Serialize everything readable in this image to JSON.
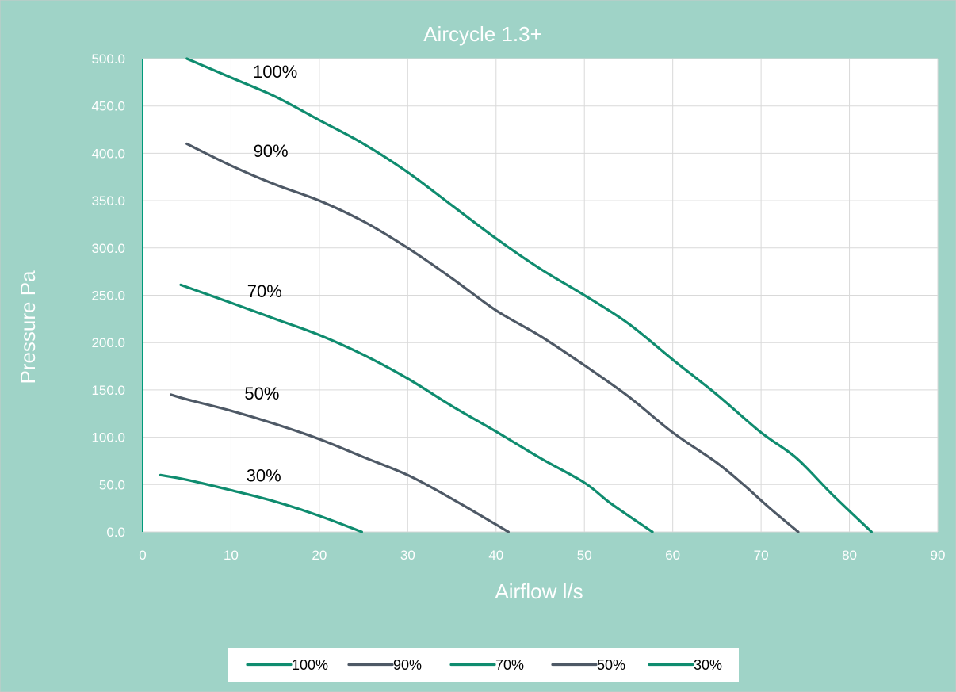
{
  "chart_data": {
    "type": "line",
    "title": "Aircycle 1.3+",
    "xlabel": "Airflow l/s",
    "ylabel": "Pressure Pa",
    "xlim": [
      0,
      90
    ],
    "ylim": [
      0,
      500
    ],
    "x_ticks": [
      "0",
      "10",
      "20",
      "30",
      "40",
      "50",
      "60",
      "70",
      "80",
      "90"
    ],
    "y_ticks": [
      "0.0",
      "50.0",
      "100.0",
      "150.0",
      "200.0",
      "250.0",
      "300.0",
      "350.0",
      "400.0",
      "450.0",
      "500.0"
    ],
    "grid": true,
    "legend_position": "bottom",
    "colors": {
      "background": "#9fd3c7",
      "plot_area": "#ffffff",
      "gridline": "#d9d9d9",
      "axis_line": "#009a7a",
      "axis_text": "#ffffff",
      "teal_series": "#0f8c6f",
      "slate_series": "#4e5966",
      "annotation_text": "#000000"
    },
    "series": [
      {
        "name": "100%",
        "color": "#0f8c6f",
        "points": [
          [
            5,
            500
          ],
          [
            10,
            480
          ],
          [
            15,
            460
          ],
          [
            20,
            435
          ],
          [
            25,
            410
          ],
          [
            30,
            380
          ],
          [
            35,
            345
          ],
          [
            40,
            310
          ],
          [
            45,
            278
          ],
          [
            50,
            250
          ],
          [
            55,
            220
          ],
          [
            60,
            182
          ],
          [
            65,
            145
          ],
          [
            70,
            105
          ],
          [
            74,
            78
          ],
          [
            78,
            40
          ],
          [
            82.5,
            0
          ]
        ]
      },
      {
        "name": "90%",
        "color": "#4e5966",
        "points": [
          [
            5,
            410
          ],
          [
            10,
            387
          ],
          [
            15,
            367
          ],
          [
            20,
            350
          ],
          [
            25,
            328
          ],
          [
            30,
            300
          ],
          [
            35,
            268
          ],
          [
            40,
            234
          ],
          [
            45,
            207
          ],
          [
            50,
            176
          ],
          [
            55,
            143
          ],
          [
            60,
            105
          ],
          [
            65,
            73
          ],
          [
            68,
            50
          ],
          [
            71,
            25
          ],
          [
            74.2,
            0
          ]
        ]
      },
      {
        "name": "70%",
        "color": "#0f8c6f",
        "points": [
          [
            4.3,
            261
          ],
          [
            10,
            242
          ],
          [
            15,
            225
          ],
          [
            20,
            208
          ],
          [
            25,
            187
          ],
          [
            30,
            162
          ],
          [
            35,
            133
          ],
          [
            40,
            106
          ],
          [
            45,
            78
          ],
          [
            50,
            52
          ],
          [
            53,
            30
          ],
          [
            57.7,
            0
          ]
        ]
      },
      {
        "name": "50%",
        "color": "#4e5966",
        "points": [
          [
            3.2,
            145
          ],
          [
            5,
            140
          ],
          [
            10,
            128
          ],
          [
            15,
            114
          ],
          [
            20,
            98
          ],
          [
            25,
            79
          ],
          [
            30,
            60
          ],
          [
            35,
            35
          ],
          [
            41.4,
            0
          ]
        ]
      },
      {
        "name": "30%",
        "color": "#0f8c6f",
        "points": [
          [
            2,
            60
          ],
          [
            5,
            55
          ],
          [
            10,
            44
          ],
          [
            15,
            32
          ],
          [
            20,
            17
          ],
          [
            24.8,
            0
          ]
        ]
      }
    ],
    "annotations": [
      {
        "text": "100%",
        "x": 15,
        "y": 480
      },
      {
        "text": "90%",
        "x": 14.5,
        "y": 396
      },
      {
        "text": "70%",
        "x": 13.8,
        "y": 248
      },
      {
        "text": "50%",
        "x": 13.5,
        "y": 140
      },
      {
        "text": "30%",
        "x": 13.7,
        "y": 53
      }
    ]
  }
}
